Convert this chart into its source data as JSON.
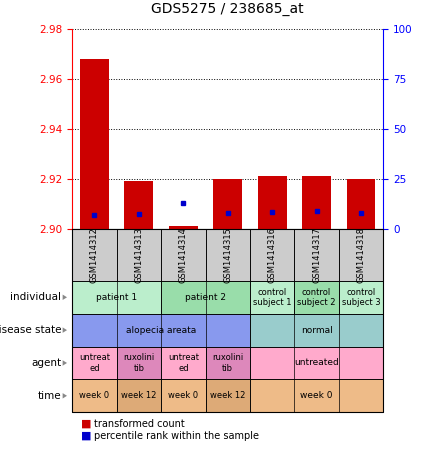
{
  "title": "GDS5275 / 238685_at",
  "samples": [
    "GSM1414312",
    "GSM1414313",
    "GSM1414314",
    "GSM1414315",
    "GSM1414316",
    "GSM1414317",
    "GSM1414318"
  ],
  "transformed_count": [
    2.968,
    2.919,
    2.901,
    2.92,
    2.921,
    2.921,
    2.92
  ],
  "percentile_rank": [
    7.0,
    7.5,
    13.0,
    8.0,
    8.5,
    9.0,
    8.0
  ],
  "ymin": 2.9,
  "ymax": 2.98,
  "y_ticks": [
    2.9,
    2.92,
    2.94,
    2.96,
    2.98
  ],
  "y2_ticks": [
    0,
    25,
    50,
    75,
    100
  ],
  "bar_color": "#cc0000",
  "dot_color": "#0000cc",
  "sample_label_bg": "#cccccc",
  "metadata_rows": [
    {
      "label": "individual",
      "key": "individual",
      "groups": [
        {
          "text": "patient 1",
          "cols": [
            0,
            1
          ],
          "color": "#bbeecc"
        },
        {
          "text": "patient 2",
          "cols": [
            2,
            3
          ],
          "color": "#99ddaa"
        },
        {
          "text": "control\nsubject 1",
          "cols": [
            4
          ],
          "color": "#bbeecc"
        },
        {
          "text": "control\nsubject 2",
          "cols": [
            5
          ],
          "color": "#99ddaa"
        },
        {
          "text": "control\nsubject 3",
          "cols": [
            6
          ],
          "color": "#bbeecc"
        }
      ]
    },
    {
      "label": "disease state",
      "key": "disease_state",
      "groups": [
        {
          "text": "alopecia areata",
          "cols": [
            0,
            1,
            2,
            3
          ],
          "color": "#8899ee"
        },
        {
          "text": "normal",
          "cols": [
            4,
            5,
            6
          ],
          "color": "#99cccc"
        }
      ]
    },
    {
      "label": "agent",
      "key": "agent",
      "groups": [
        {
          "text": "untreat\ned",
          "cols": [
            0
          ],
          "color": "#ffaacc"
        },
        {
          "text": "ruxolini\ntib",
          "cols": [
            1
          ],
          "color": "#dd88bb"
        },
        {
          "text": "untreat\ned",
          "cols": [
            2
          ],
          "color": "#ffaacc"
        },
        {
          "text": "ruxolini\ntib",
          "cols": [
            3
          ],
          "color": "#dd88bb"
        },
        {
          "text": "untreated",
          "cols": [
            4,
            5,
            6
          ],
          "color": "#ffaacc"
        }
      ]
    },
    {
      "label": "time",
      "key": "time",
      "groups": [
        {
          "text": "week 0",
          "cols": [
            0
          ],
          "color": "#eebb88"
        },
        {
          "text": "week 12",
          "cols": [
            1
          ],
          "color": "#ddaa77"
        },
        {
          "text": "week 0",
          "cols": [
            2
          ],
          "color": "#eebb88"
        },
        {
          "text": "week 12",
          "cols": [
            3
          ],
          "color": "#ddaa77"
        },
        {
          "text": "week 0",
          "cols": [
            4,
            5,
            6
          ],
          "color": "#eebb88"
        }
      ]
    }
  ]
}
